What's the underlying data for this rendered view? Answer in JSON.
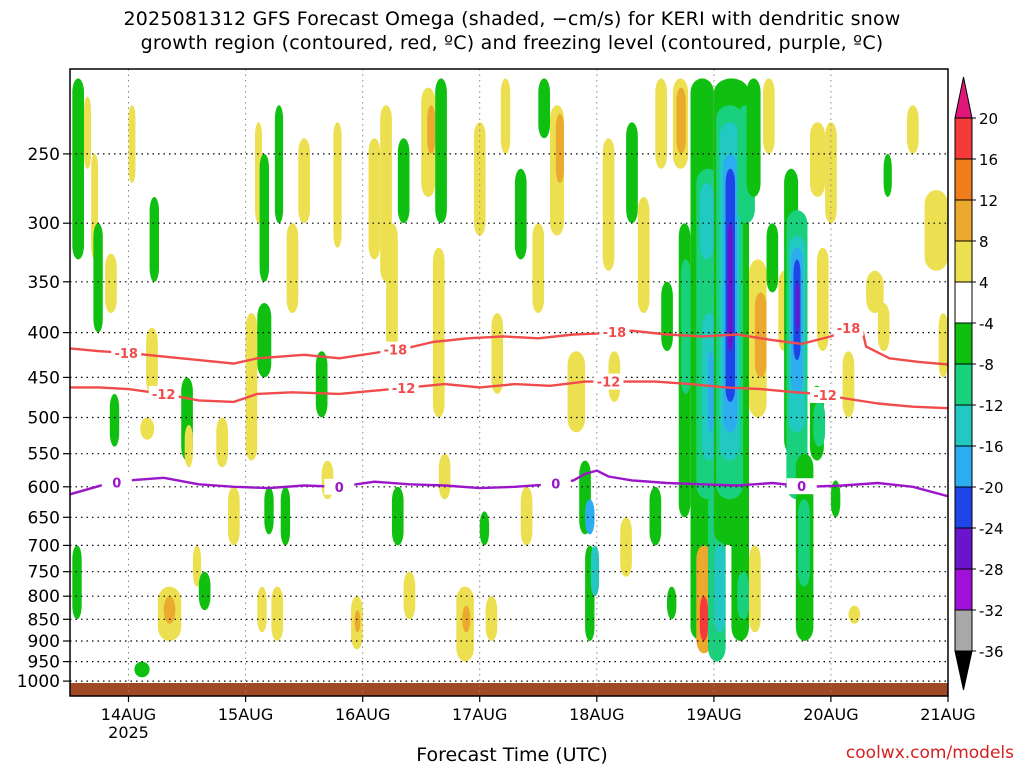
{
  "title_line1": "2025081312 GFS Forecast Omega (shaded, −cm/s) for KERI with dendritic snow",
  "title_line2": "growth region (contoured, red, ºC) and freezing level (contoured, purple, ºC)",
  "xlabel": "Forecast Time (UTC)",
  "credit": "coolwx.com/models",
  "chart_data": {
    "type": "heatmap",
    "title": "2025081312 GFS Forecast Omega (shaded, −cm/s) for KERI with dendritic snow growth region (contoured, red, ºC) and freezing level (contoured, purple, ºC)",
    "xlabel": "Forecast Time (UTC)",
    "ylabel": "",
    "y_ticks": [
      250,
      300,
      350,
      400,
      450,
      500,
      550,
      600,
      650,
      700,
      750,
      800,
      850,
      900,
      950,
      1000
    ],
    "x_ticks": [
      {
        "label": "14AUG",
        "sub": "2025",
        "day": 14
      },
      {
        "label": "15AUG",
        "sub": "",
        "day": 15
      },
      {
        "label": "16AUG",
        "sub": "",
        "day": 16
      },
      {
        "label": "17AUG",
        "sub": "",
        "day": 17
      },
      {
        "label": "18AUG",
        "sub": "",
        "day": 18
      },
      {
        "label": "19AUG",
        "sub": "",
        "day": 19
      },
      {
        "label": "20AUG",
        "sub": "",
        "day": 20
      },
      {
        "label": "21AUG",
        "sub": "",
        "day": 21
      }
    ],
    "xlim_day": [
      13.5,
      21
    ],
    "ylim_hpa": [
      200,
      1040
    ],
    "colorbar": {
      "labels": [
        "20",
        "16",
        "12",
        "8",
        "4",
        "-4",
        "-8",
        "-12",
        "-16",
        "-20",
        "-24",
        "-28",
        "-32",
        "-36"
      ],
      "colors": [
        "#e0167a",
        "#f53a3a",
        "#f07c1c",
        "#ebaa2e",
        "#ece050",
        "#ffffff",
        "#10c010",
        "#19d07c",
        "#22c8c2",
        "#2cadf0",
        "#1f44e8",
        "#6c14cc",
        "#a010d8",
        "#a8a8a8",
        "#000000"
      ]
    },
    "series": [
      {
        "name": "-18",
        "color": "#f04c4c",
        "points": [
          [
            13.5,
            417
          ],
          [
            13.75,
            420
          ],
          [
            14.0,
            422
          ],
          [
            14.3,
            426
          ],
          [
            14.6,
            430
          ],
          [
            14.9,
            434
          ],
          [
            15.1,
            428
          ],
          [
            15.5,
            424
          ],
          [
            15.8,
            428
          ],
          [
            16.1,
            422
          ],
          [
            16.4,
            416
          ],
          [
            16.6,
            410
          ],
          [
            16.9,
            406
          ],
          [
            17.2,
            404
          ],
          [
            17.5,
            406
          ],
          [
            17.8,
            402
          ],
          [
            18.0,
            401
          ],
          [
            18.3,
            398
          ],
          [
            18.6,
            402
          ],
          [
            18.9,
            404
          ],
          [
            19.2,
            402
          ],
          [
            19.5,
            408
          ],
          [
            19.75,
            412
          ],
          [
            20.0,
            404
          ],
          [
            20.15,
            395
          ],
          [
            20.25,
            388
          ],
          [
            20.3,
            415
          ],
          [
            20.5,
            428
          ],
          [
            20.75,
            432
          ],
          [
            21.0,
            435
          ]
        ],
        "labels": [
          [
            13.98,
            "-18"
          ],
          [
            16.28,
            "-18"
          ],
          [
            18.15,
            "-18"
          ],
          [
            20.15,
            "-18"
          ]
        ]
      },
      {
        "name": "-12",
        "color": "#f04c4c",
        "points": [
          [
            13.5,
            462
          ],
          [
            13.75,
            462
          ],
          [
            14.0,
            464
          ],
          [
            14.3,
            470
          ],
          [
            14.6,
            478
          ],
          [
            14.9,
            480
          ],
          [
            15.1,
            470
          ],
          [
            15.4,
            468
          ],
          [
            15.8,
            470
          ],
          [
            16.1,
            466
          ],
          [
            16.4,
            462
          ],
          [
            16.7,
            458
          ],
          [
            17.0,
            462
          ],
          [
            17.3,
            458
          ],
          [
            17.6,
            460
          ],
          [
            17.9,
            455
          ],
          [
            18.2,
            455
          ],
          [
            18.5,
            455
          ],
          [
            18.8,
            458
          ],
          [
            19.1,
            462
          ],
          [
            19.4,
            464
          ],
          [
            19.7,
            468
          ],
          [
            19.9,
            470
          ],
          [
            20.1,
            475
          ],
          [
            20.4,
            482
          ],
          [
            20.7,
            486
          ],
          [
            21.0,
            488
          ]
        ],
        "labels": [
          [
            14.3,
            "-12"
          ],
          [
            16.35,
            "-12"
          ],
          [
            18.1,
            "-12"
          ],
          [
            19.95,
            "-12"
          ]
        ]
      },
      {
        "name": "0",
        "color": "#9b16c8",
        "points": [
          [
            13.5,
            612
          ],
          [
            13.8,
            596
          ],
          [
            14.0,
            590
          ],
          [
            14.3,
            586
          ],
          [
            14.6,
            596
          ],
          [
            14.9,
            600
          ],
          [
            15.2,
            602
          ],
          [
            15.5,
            598
          ],
          [
            15.8,
            600
          ],
          [
            16.1,
            592
          ],
          [
            16.4,
            596
          ],
          [
            16.7,
            598
          ],
          [
            17.0,
            602
          ],
          [
            17.3,
            600
          ],
          [
            17.6,
            596
          ],
          [
            17.8,
            590
          ],
          [
            17.9,
            580
          ],
          [
            18.0,
            575
          ],
          [
            18.1,
            584
          ],
          [
            18.3,
            590
          ],
          [
            18.6,
            594
          ],
          [
            18.9,
            596
          ],
          [
            19.2,
            598
          ],
          [
            19.5,
            594
          ],
          [
            19.8,
            600
          ],
          [
            20.1,
            598
          ],
          [
            20.4,
            594
          ],
          [
            20.7,
            600
          ],
          [
            21.0,
            615
          ]
        ],
        "labels": [
          [
            13.9,
            "0"
          ],
          [
            15.8,
            "0"
          ],
          [
            17.65,
            "0"
          ],
          [
            19.75,
            "0"
          ]
        ]
      }
    ],
    "bottom_fill": {
      "color": "#9f4a24",
      "from_hpa": 1005,
      "to_hpa": 1040
    }
  }
}
